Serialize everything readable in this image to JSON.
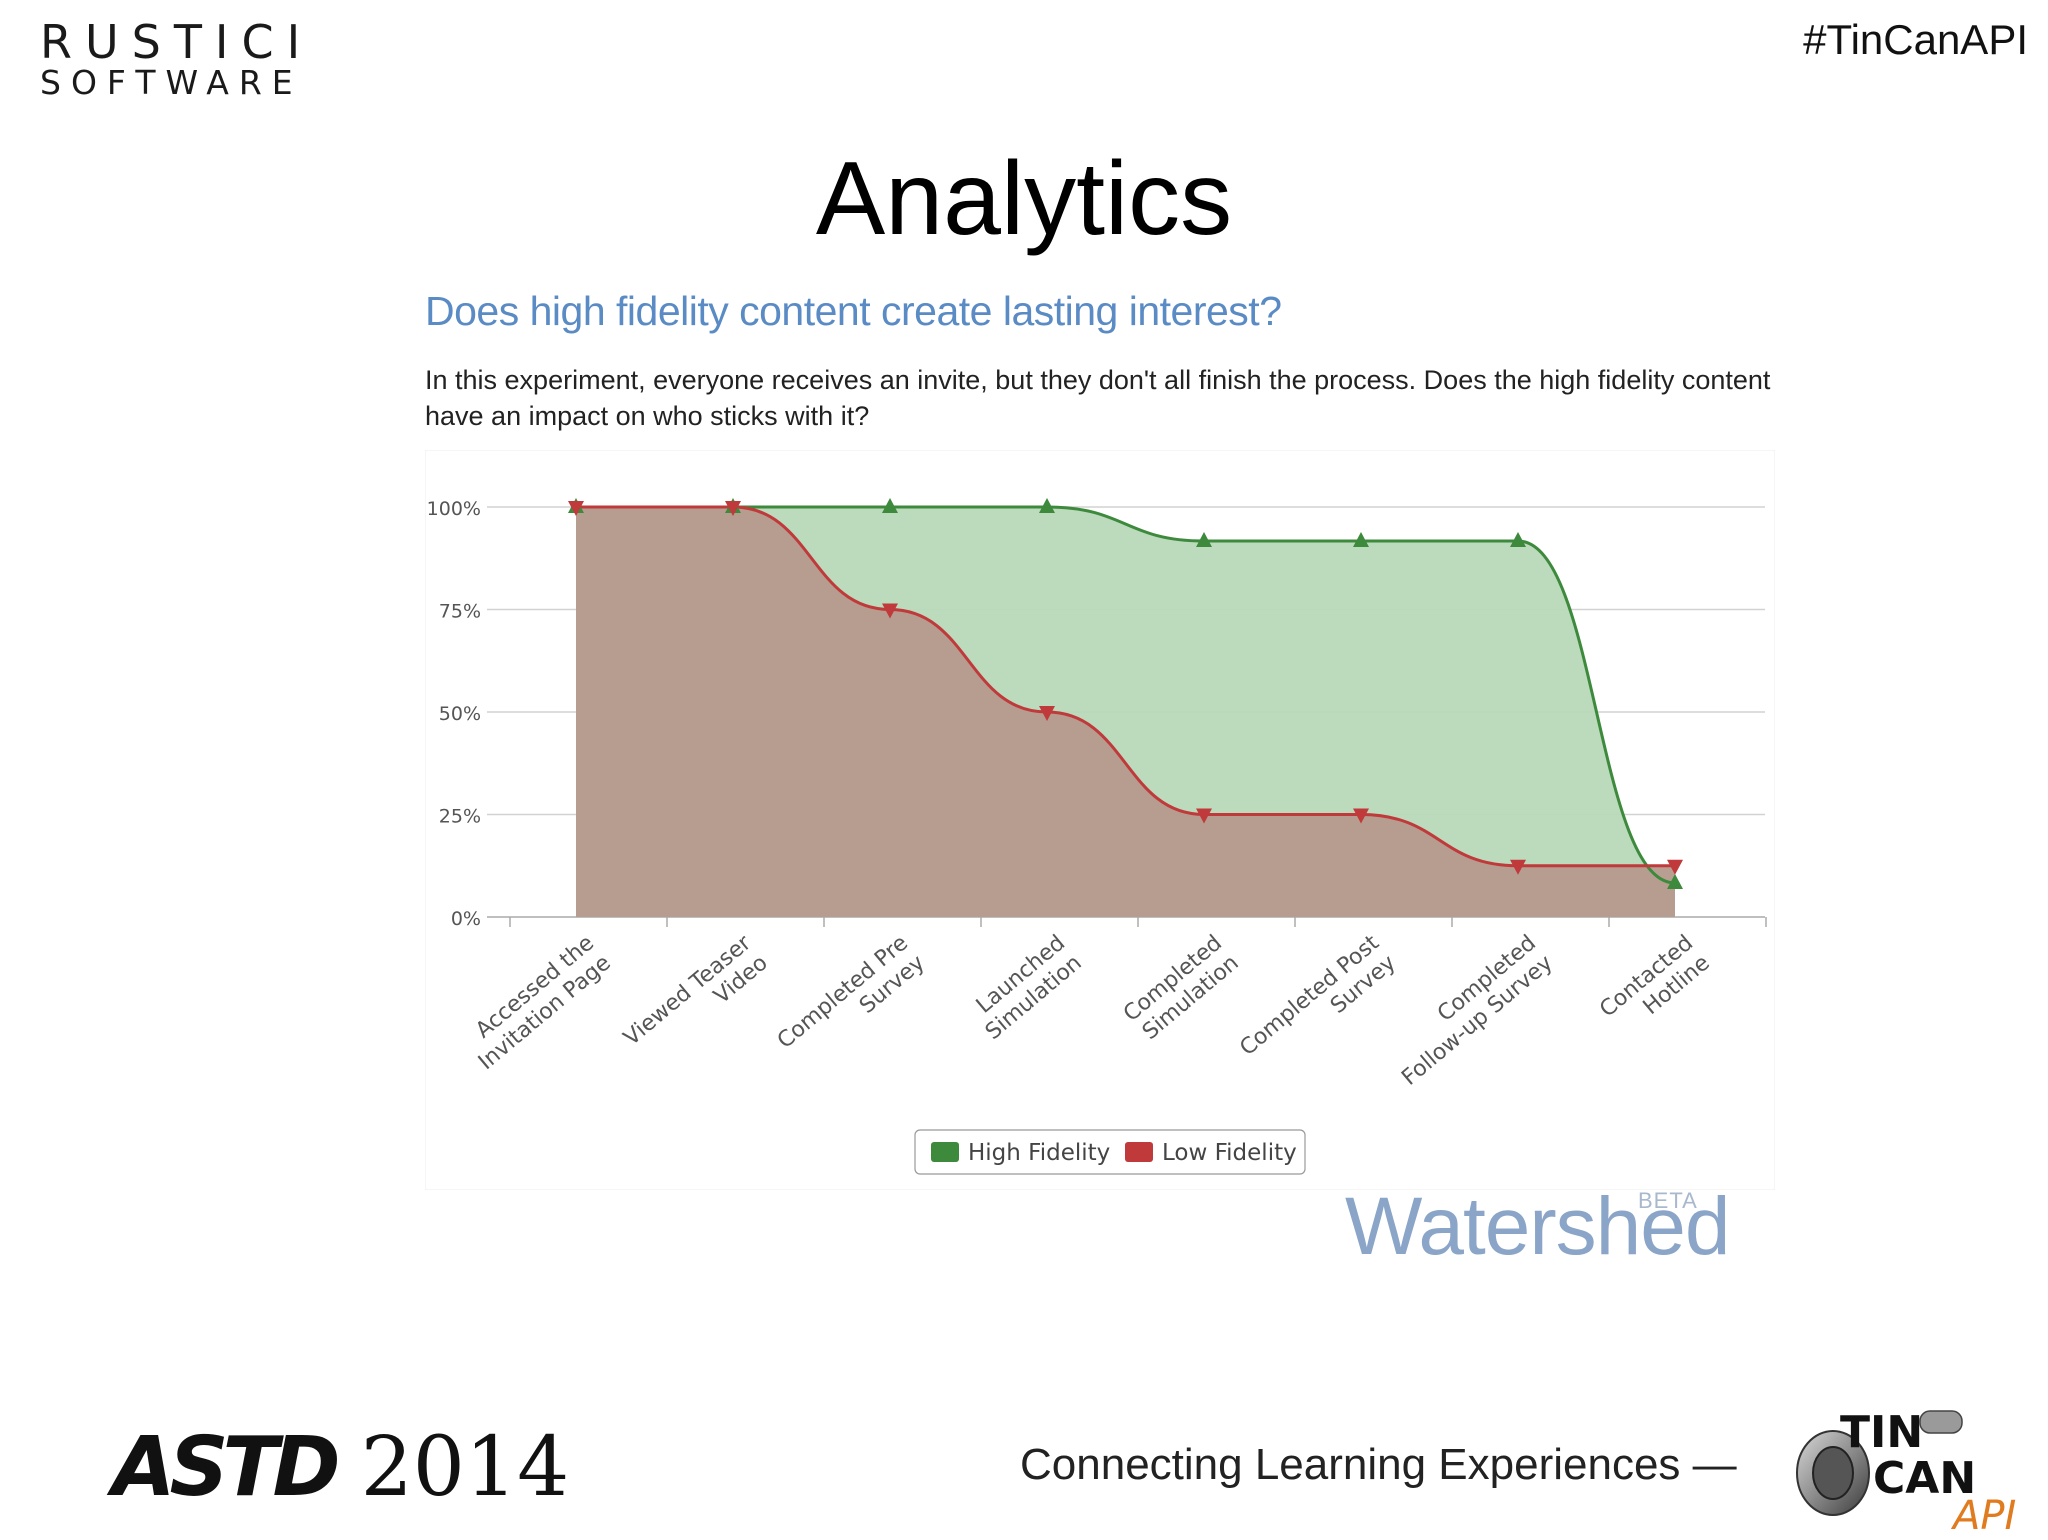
{
  "header": {
    "logo_line1": "RUSTICI",
    "logo_line2": "SOFTWARE",
    "hashtag": "#TinCanAPI"
  },
  "slide": {
    "title": "Analytics"
  },
  "chart": {
    "heading": "Does high fidelity content create lasting interest?",
    "description": "In this experiment, everyone receives an invite, but they don't all finish the process. Does the high fidelity content have an impact on who sticks with it?"
  },
  "chart_data": {
    "type": "area",
    "categories": [
      [
        "Accessed the",
        "Invitation Page"
      ],
      [
        "Viewed Teaser",
        "Video"
      ],
      [
        "Completed Pre",
        "Survey"
      ],
      [
        "Launched",
        "Simulation"
      ],
      [
        "Completed",
        "Simulation"
      ],
      [
        "Completed Post",
        "Survey"
      ],
      [
        "Completed",
        "Follow-up Survey"
      ],
      [
        "Contacted",
        "Hotline"
      ]
    ],
    "series": [
      {
        "name": "High Fidelity",
        "values": [
          100,
          100,
          100,
          100,
          91.7,
          91.7,
          91.7,
          8.3
        ]
      },
      {
        "name": "Low Fidelity",
        "values": [
          100,
          100,
          75,
          50,
          25,
          25,
          12.5,
          12.5
        ]
      }
    ],
    "yticks": [
      "0%",
      "25%",
      "50%",
      "75%",
      "100%"
    ],
    "ylim": [
      0,
      100
    ],
    "grid": true,
    "legend_position": "bottom-center"
  },
  "branding": {
    "watershed": "Watershed",
    "watershed_tag": "BETA",
    "astd_prefix": "ASTD",
    "astd_year": "2014",
    "tagline": "Connecting Learning Experiences —",
    "tincan_top": "TIN",
    "tincan_mid": "CAN",
    "tincan_api": "API"
  },
  "colors": {
    "high_line": "#3d8a3d",
    "high_fill": "#b8d8b8",
    "low_line": "#c0393b",
    "low_fill": "#b59a8c",
    "heading": "#5a8bc4"
  }
}
